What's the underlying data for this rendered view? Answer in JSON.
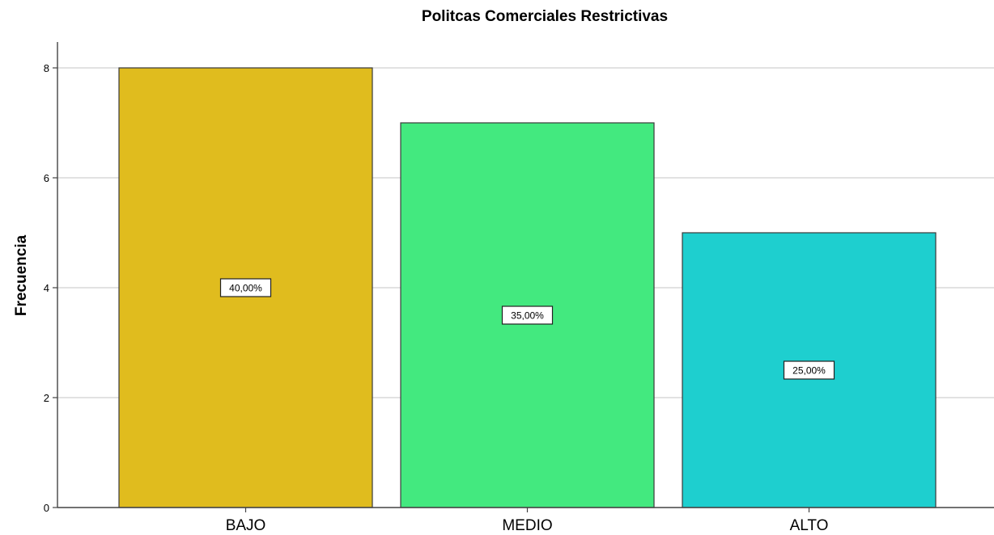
{
  "chart_data": {
    "type": "bar",
    "title": "Politcas Comerciales Restrictivas",
    "xlabel": "",
    "ylabel": "Frecuencia",
    "categories": [
      "BAJO",
      "MEDIO",
      "ALTO"
    ],
    "values": [
      8,
      7,
      5
    ],
    "data_labels": [
      "40,00%",
      "35,00%",
      "25,00%"
    ],
    "colors": [
      "#E0BC1E",
      "#43E97F",
      "#1ECFCF"
    ],
    "ylim": [
      0,
      8
    ],
    "yticks": [
      0,
      2,
      4,
      6,
      8
    ],
    "ytick_labels": [
      "0",
      "2",
      "4",
      "6",
      "8"
    ],
    "grid": true,
    "legend": "none"
  }
}
